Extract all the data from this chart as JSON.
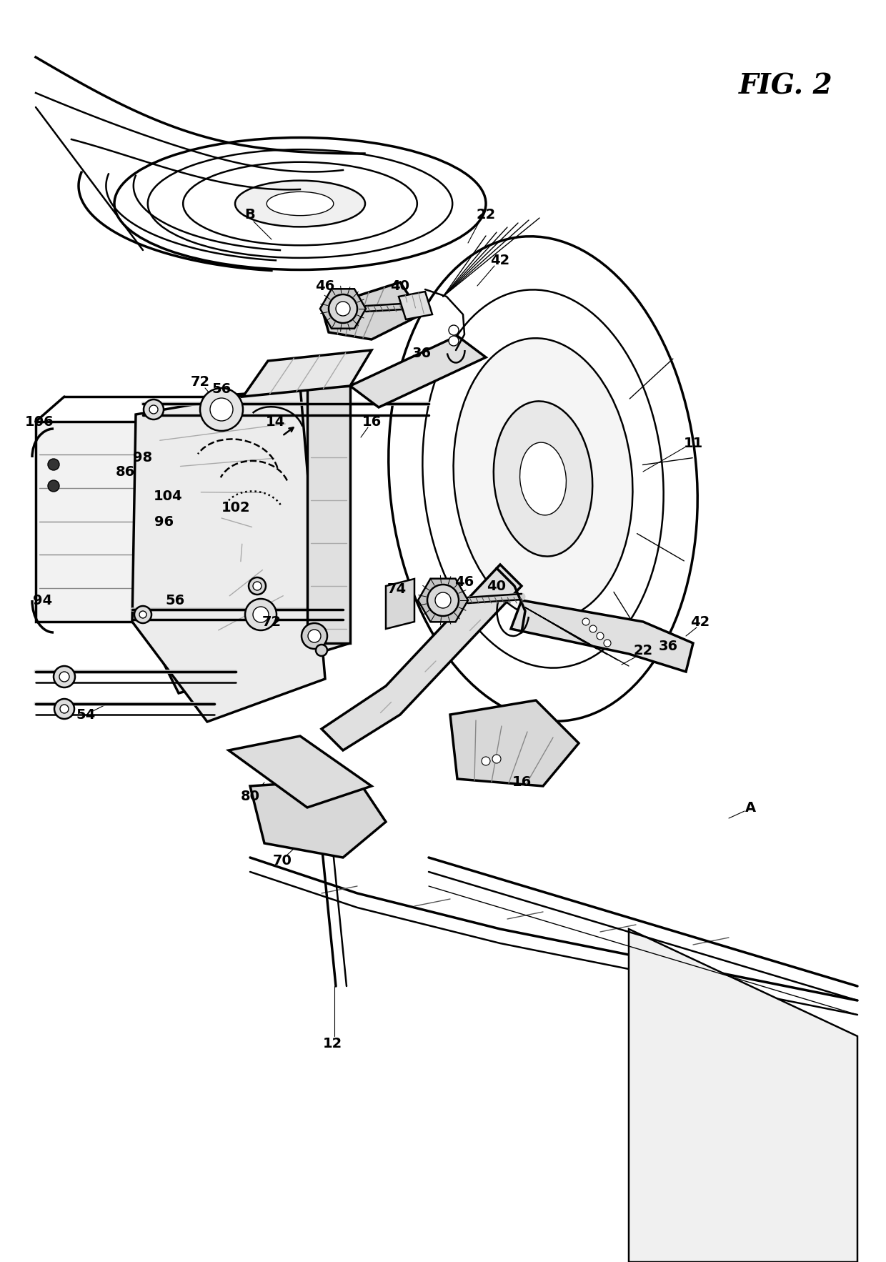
{
  "title": "FIG. 2",
  "background_color": "#ffffff",
  "line_color": "#000000",
  "fig_width": 12.4,
  "fig_height": 17.66,
  "dpi": 100
}
